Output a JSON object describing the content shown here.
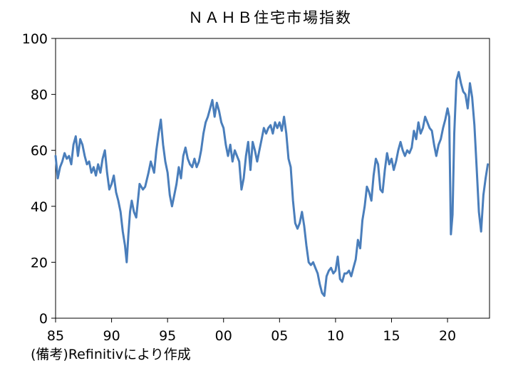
{
  "chart_data": {
    "type": "line",
    "title": "ＮＡＨＢ住宅市場指数",
    "xlabel": "",
    "ylabel": "",
    "xlim": [
      1985.0,
      2023.75
    ],
    "ylim": [
      0,
      100
    ],
    "y_ticks": [
      0,
      20,
      40,
      60,
      80,
      100
    ],
    "x_ticks": [
      {
        "value": 1985,
        "label": "85"
      },
      {
        "value": 1990,
        "label": "90"
      },
      {
        "value": 1995,
        "label": "95"
      },
      {
        "value": 2000,
        "label": "00"
      },
      {
        "value": 2005,
        "label": "05"
      },
      {
        "value": 2010,
        "label": "10"
      },
      {
        "value": 2015,
        "label": "15"
      },
      {
        "value": 2020,
        "label": "20"
      }
    ],
    "grid": false,
    "legend": "none",
    "series": [
      {
        "color": "#4a7ebb",
        "points": [
          [
            1985.0,
            58
          ],
          [
            1985.2,
            50
          ],
          [
            1985.4,
            54
          ],
          [
            1985.6,
            56
          ],
          [
            1985.8,
            59
          ],
          [
            1986.0,
            57
          ],
          [
            1986.2,
            58
          ],
          [
            1986.4,
            55
          ],
          [
            1986.6,
            62
          ],
          [
            1986.8,
            65
          ],
          [
            1987.0,
            58
          ],
          [
            1987.2,
            64
          ],
          [
            1987.4,
            62
          ],
          [
            1987.6,
            58
          ],
          [
            1987.8,
            55
          ],
          [
            1988.0,
            56
          ],
          [
            1988.2,
            52
          ],
          [
            1988.4,
            54
          ],
          [
            1988.6,
            51
          ],
          [
            1988.8,
            55
          ],
          [
            1989.0,
            52
          ],
          [
            1989.2,
            57
          ],
          [
            1989.4,
            60
          ],
          [
            1989.6,
            52
          ],
          [
            1989.8,
            46
          ],
          [
            1990.0,
            48
          ],
          [
            1990.2,
            51
          ],
          [
            1990.4,
            45
          ],
          [
            1990.6,
            42
          ],
          [
            1990.8,
            38
          ],
          [
            1991.0,
            31
          ],
          [
            1991.2,
            26
          ],
          [
            1991.35,
            20
          ],
          [
            1991.5,
            30
          ],
          [
            1991.65,
            38
          ],
          [
            1991.8,
            42
          ],
          [
            1992.0,
            38
          ],
          [
            1992.2,
            36
          ],
          [
            1992.5,
            48
          ],
          [
            1992.8,
            46
          ],
          [
            1993.0,
            47
          ],
          [
            1993.3,
            52
          ],
          [
            1993.5,
            56
          ],
          [
            1993.8,
            52
          ],
          [
            1994.0,
            60
          ],
          [
            1994.2,
            66
          ],
          [
            1994.4,
            71
          ],
          [
            1994.6,
            62
          ],
          [
            1994.8,
            56
          ],
          [
            1995.0,
            52
          ],
          [
            1995.2,
            44
          ],
          [
            1995.4,
            40
          ],
          [
            1995.6,
            44
          ],
          [
            1995.8,
            48
          ],
          [
            1996.0,
            54
          ],
          [
            1996.2,
            50
          ],
          [
            1996.4,
            58
          ],
          [
            1996.6,
            61
          ],
          [
            1996.8,
            57
          ],
          [
            1997.0,
            55
          ],
          [
            1997.2,
            54
          ],
          [
            1997.4,
            57
          ],
          [
            1997.6,
            54
          ],
          [
            1997.8,
            56
          ],
          [
            1998.0,
            60
          ],
          [
            1998.2,
            66
          ],
          [
            1998.4,
            70
          ],
          [
            1998.6,
            72
          ],
          [
            1998.8,
            75
          ],
          [
            1999.0,
            78
          ],
          [
            1999.2,
            72
          ],
          [
            1999.4,
            77
          ],
          [
            1999.6,
            74
          ],
          [
            1999.8,
            70
          ],
          [
            2000.0,
            68
          ],
          [
            2000.2,
            62
          ],
          [
            2000.4,
            58
          ],
          [
            2000.6,
            62
          ],
          [
            2000.8,
            56
          ],
          [
            2001.0,
            60
          ],
          [
            2001.2,
            58
          ],
          [
            2001.4,
            56
          ],
          [
            2001.6,
            46
          ],
          [
            2001.8,
            50
          ],
          [
            2002.0,
            58
          ],
          [
            2002.2,
            63
          ],
          [
            2002.4,
            53
          ],
          [
            2002.6,
            63
          ],
          [
            2002.8,
            60
          ],
          [
            2003.0,
            56
          ],
          [
            2003.2,
            60
          ],
          [
            2003.4,
            64
          ],
          [
            2003.6,
            68
          ],
          [
            2003.8,
            66
          ],
          [
            2004.0,
            68
          ],
          [
            2004.2,
            69
          ],
          [
            2004.4,
            66
          ],
          [
            2004.6,
            70
          ],
          [
            2004.8,
            68
          ],
          [
            2005.0,
            70
          ],
          [
            2005.2,
            67
          ],
          [
            2005.4,
            72
          ],
          [
            2005.6,
            66
          ],
          [
            2005.8,
            57
          ],
          [
            2006.0,
            54
          ],
          [
            2006.2,
            42
          ],
          [
            2006.4,
            34
          ],
          [
            2006.6,
            32
          ],
          [
            2006.8,
            34
          ],
          [
            2007.0,
            38
          ],
          [
            2007.2,
            33
          ],
          [
            2007.4,
            26
          ],
          [
            2007.6,
            20
          ],
          [
            2007.8,
            19
          ],
          [
            2008.0,
            20
          ],
          [
            2008.2,
            18
          ],
          [
            2008.4,
            16
          ],
          [
            2008.6,
            12
          ],
          [
            2008.8,
            9
          ],
          [
            2009.0,
            8
          ],
          [
            2009.2,
            15
          ],
          [
            2009.4,
            17
          ],
          [
            2009.6,
            18
          ],
          [
            2009.8,
            16
          ],
          [
            2010.0,
            17
          ],
          [
            2010.2,
            22
          ],
          [
            2010.4,
            14
          ],
          [
            2010.6,
            13
          ],
          [
            2010.8,
            16
          ],
          [
            2011.0,
            16
          ],
          [
            2011.2,
            17
          ],
          [
            2011.4,
            15
          ],
          [
            2011.6,
            18
          ],
          [
            2011.8,
            21
          ],
          [
            2012.0,
            28
          ],
          [
            2012.2,
            25
          ],
          [
            2012.4,
            35
          ],
          [
            2012.6,
            40
          ],
          [
            2012.8,
            47
          ],
          [
            2013.0,
            45
          ],
          [
            2013.2,
            42
          ],
          [
            2013.4,
            51
          ],
          [
            2013.6,
            57
          ],
          [
            2013.8,
            55
          ],
          [
            2014.0,
            46
          ],
          [
            2014.2,
            45
          ],
          [
            2014.4,
            53
          ],
          [
            2014.6,
            59
          ],
          [
            2014.8,
            55
          ],
          [
            2015.0,
            57
          ],
          [
            2015.2,
            53
          ],
          [
            2015.4,
            56
          ],
          [
            2015.6,
            60
          ],
          [
            2015.8,
            63
          ],
          [
            2016.0,
            60
          ],
          [
            2016.2,
            58
          ],
          [
            2016.4,
            60
          ],
          [
            2016.6,
            59
          ],
          [
            2016.8,
            61
          ],
          [
            2017.0,
            67
          ],
          [
            2017.2,
            64
          ],
          [
            2017.4,
            70
          ],
          [
            2017.6,
            66
          ],
          [
            2017.8,
            68
          ],
          [
            2018.0,
            72
          ],
          [
            2018.2,
            70
          ],
          [
            2018.4,
            68
          ],
          [
            2018.6,
            67
          ],
          [
            2018.8,
            62
          ],
          [
            2019.0,
            58
          ],
          [
            2019.2,
            62
          ],
          [
            2019.4,
            64
          ],
          [
            2019.6,
            68
          ],
          [
            2019.8,
            71
          ],
          [
            2020.0,
            75
          ],
          [
            2020.15,
            72
          ],
          [
            2020.3,
            30
          ],
          [
            2020.45,
            37
          ],
          [
            2020.6,
            66
          ],
          [
            2020.8,
            85
          ],
          [
            2021.0,
            88
          ],
          [
            2021.2,
            84
          ],
          [
            2021.4,
            81
          ],
          [
            2021.6,
            80
          ],
          [
            2021.8,
            75
          ],
          [
            2022.0,
            84
          ],
          [
            2022.2,
            79
          ],
          [
            2022.4,
            69
          ],
          [
            2022.6,
            54
          ],
          [
            2022.8,
            38
          ],
          [
            2023.0,
            31
          ],
          [
            2023.2,
            44
          ],
          [
            2023.4,
            50
          ],
          [
            2023.6,
            55
          ]
        ]
      }
    ]
  },
  "source_note": "(備考)Refinitivにより作成"
}
